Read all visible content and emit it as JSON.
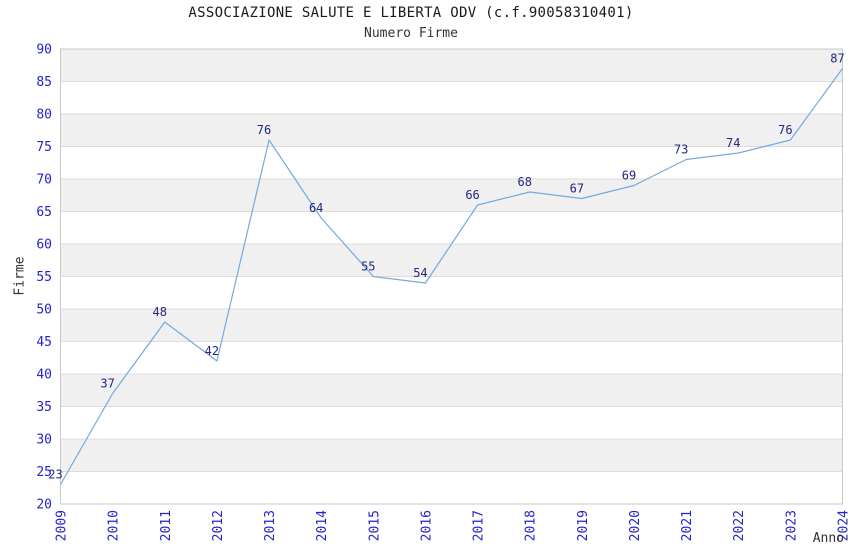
{
  "header": {
    "title": "ASSOCIAZIONE SALUTE E LIBERTA ODV (c.f.90058310401)",
    "subtitle": "Numero Firme"
  },
  "chart_data": {
    "type": "line",
    "title": "ASSOCIAZIONE SALUTE E LIBERTA ODV (c.f.90058310401)",
    "subtitle": "Numero Firme",
    "xlabel": "Anno",
    "ylabel": "Firme",
    "categories": [
      "2009",
      "2010",
      "2011",
      "2012",
      "2013",
      "2014",
      "2015",
      "2016",
      "2017",
      "2018",
      "2019",
      "2020",
      "2021",
      "2022",
      "2023",
      "2024"
    ],
    "values": [
      23,
      37,
      48,
      42,
      76,
      64,
      55,
      54,
      66,
      68,
      67,
      69,
      73,
      74,
      76,
      87
    ],
    "ylim": [
      20,
      90
    ],
    "ytick_step": 5,
    "yticks": [
      20,
      25,
      30,
      35,
      40,
      45,
      50,
      55,
      60,
      65,
      70,
      75,
      80,
      85,
      90
    ],
    "grid": "horizontal gridlines with alternating shaded bands",
    "legend": false,
    "data_labels_visible": true,
    "colors": {
      "line": "#74aadd",
      "tick_label": "#2424cd",
      "data_label": "#26267e",
      "band_shade": "#f0f0f0",
      "gridline": "#dddddd",
      "plot_border": "#c8c8c8",
      "axis_title": "#333333",
      "title_text": "#1a1a1a"
    }
  }
}
